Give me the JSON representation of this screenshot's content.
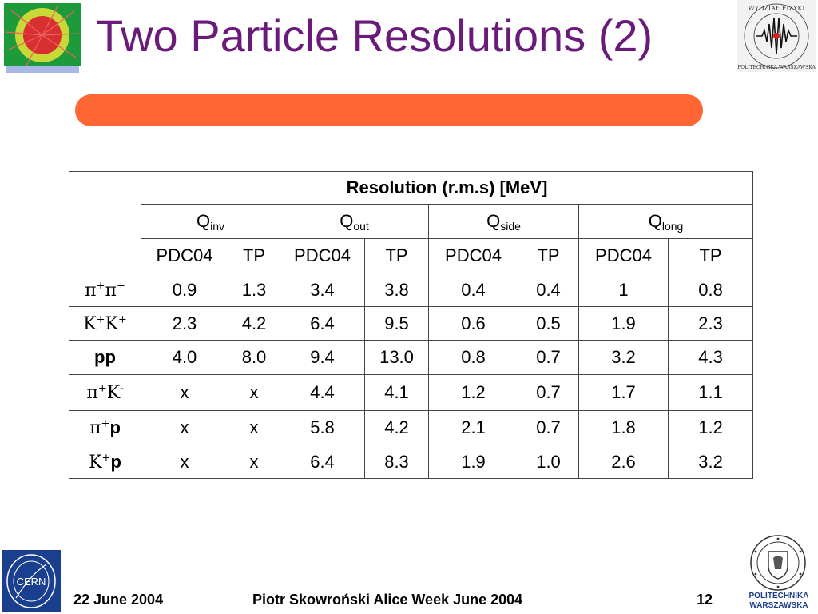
{
  "title": "Two Particle Resolutions (2)",
  "table": {
    "header_main": "Resolution (r.m.s) [MeV]",
    "q_groups": [
      {
        "symbol": "Q",
        "sub": "inv"
      },
      {
        "symbol": "Q",
        "sub": "out"
      },
      {
        "symbol": "Q",
        "sub": "side"
      },
      {
        "symbol": "Q",
        "sub": "long"
      }
    ],
    "methods": [
      "PDC04",
      "TP",
      "PDC04",
      "TP",
      "PDC04",
      "TP",
      "PDC04",
      "TP"
    ],
    "rows": [
      {
        "p1": "π",
        "s1": "+",
        "p2": "π",
        "s2": "+",
        "values": [
          "0.9",
          "1.3",
          "3.4",
          "3.8",
          "0.4",
          "0.4",
          "1",
          "0.8"
        ]
      },
      {
        "p1": "K",
        "s1": "+",
        "p2": "K",
        "s2": "+",
        "values": [
          "2.3",
          "4.2",
          "6.4",
          "9.5",
          "0.6",
          "0.5",
          "1.9",
          "2.3"
        ]
      },
      {
        "label": "pp",
        "values": [
          "4.0",
          "8.0",
          "9.4",
          "13.0",
          "0.8",
          "0.7",
          "3.2",
          "4.3"
        ]
      },
      {
        "p1": "π",
        "s1": "+",
        "p2": "K",
        "s2": "-",
        "values": [
          "x",
          "x",
          "4.4",
          "4.1",
          "1.2",
          "0.7",
          "1.7",
          "1.1"
        ]
      },
      {
        "p1": "π",
        "s1": "+",
        "p2": "p",
        "s2": "",
        "values": [
          "x",
          "x",
          "5.8",
          "4.2",
          "2.1",
          "0.7",
          "1.8",
          "1.2"
        ]
      },
      {
        "p1": "K",
        "s1": "+",
        "p2": "p",
        "s2": "",
        "values": [
          "x",
          "x",
          "6.4",
          "8.3",
          "1.9",
          "1.0",
          "2.6",
          "3.2"
        ]
      }
    ]
  },
  "logos": {
    "faculty_top": "WYDZIAŁ FIZYKI",
    "faculty_bottom": "POLITECHNIKA WARSZAWSKA",
    "cern": "CERN",
    "pw_name_line1": "POLITECHNIKA",
    "pw_name_line2": "WARSZAWSKA"
  },
  "footer": {
    "date": "22 June 2004",
    "author": "Piotr Skowroński  Alice Week June  2004",
    "page": "12"
  }
}
